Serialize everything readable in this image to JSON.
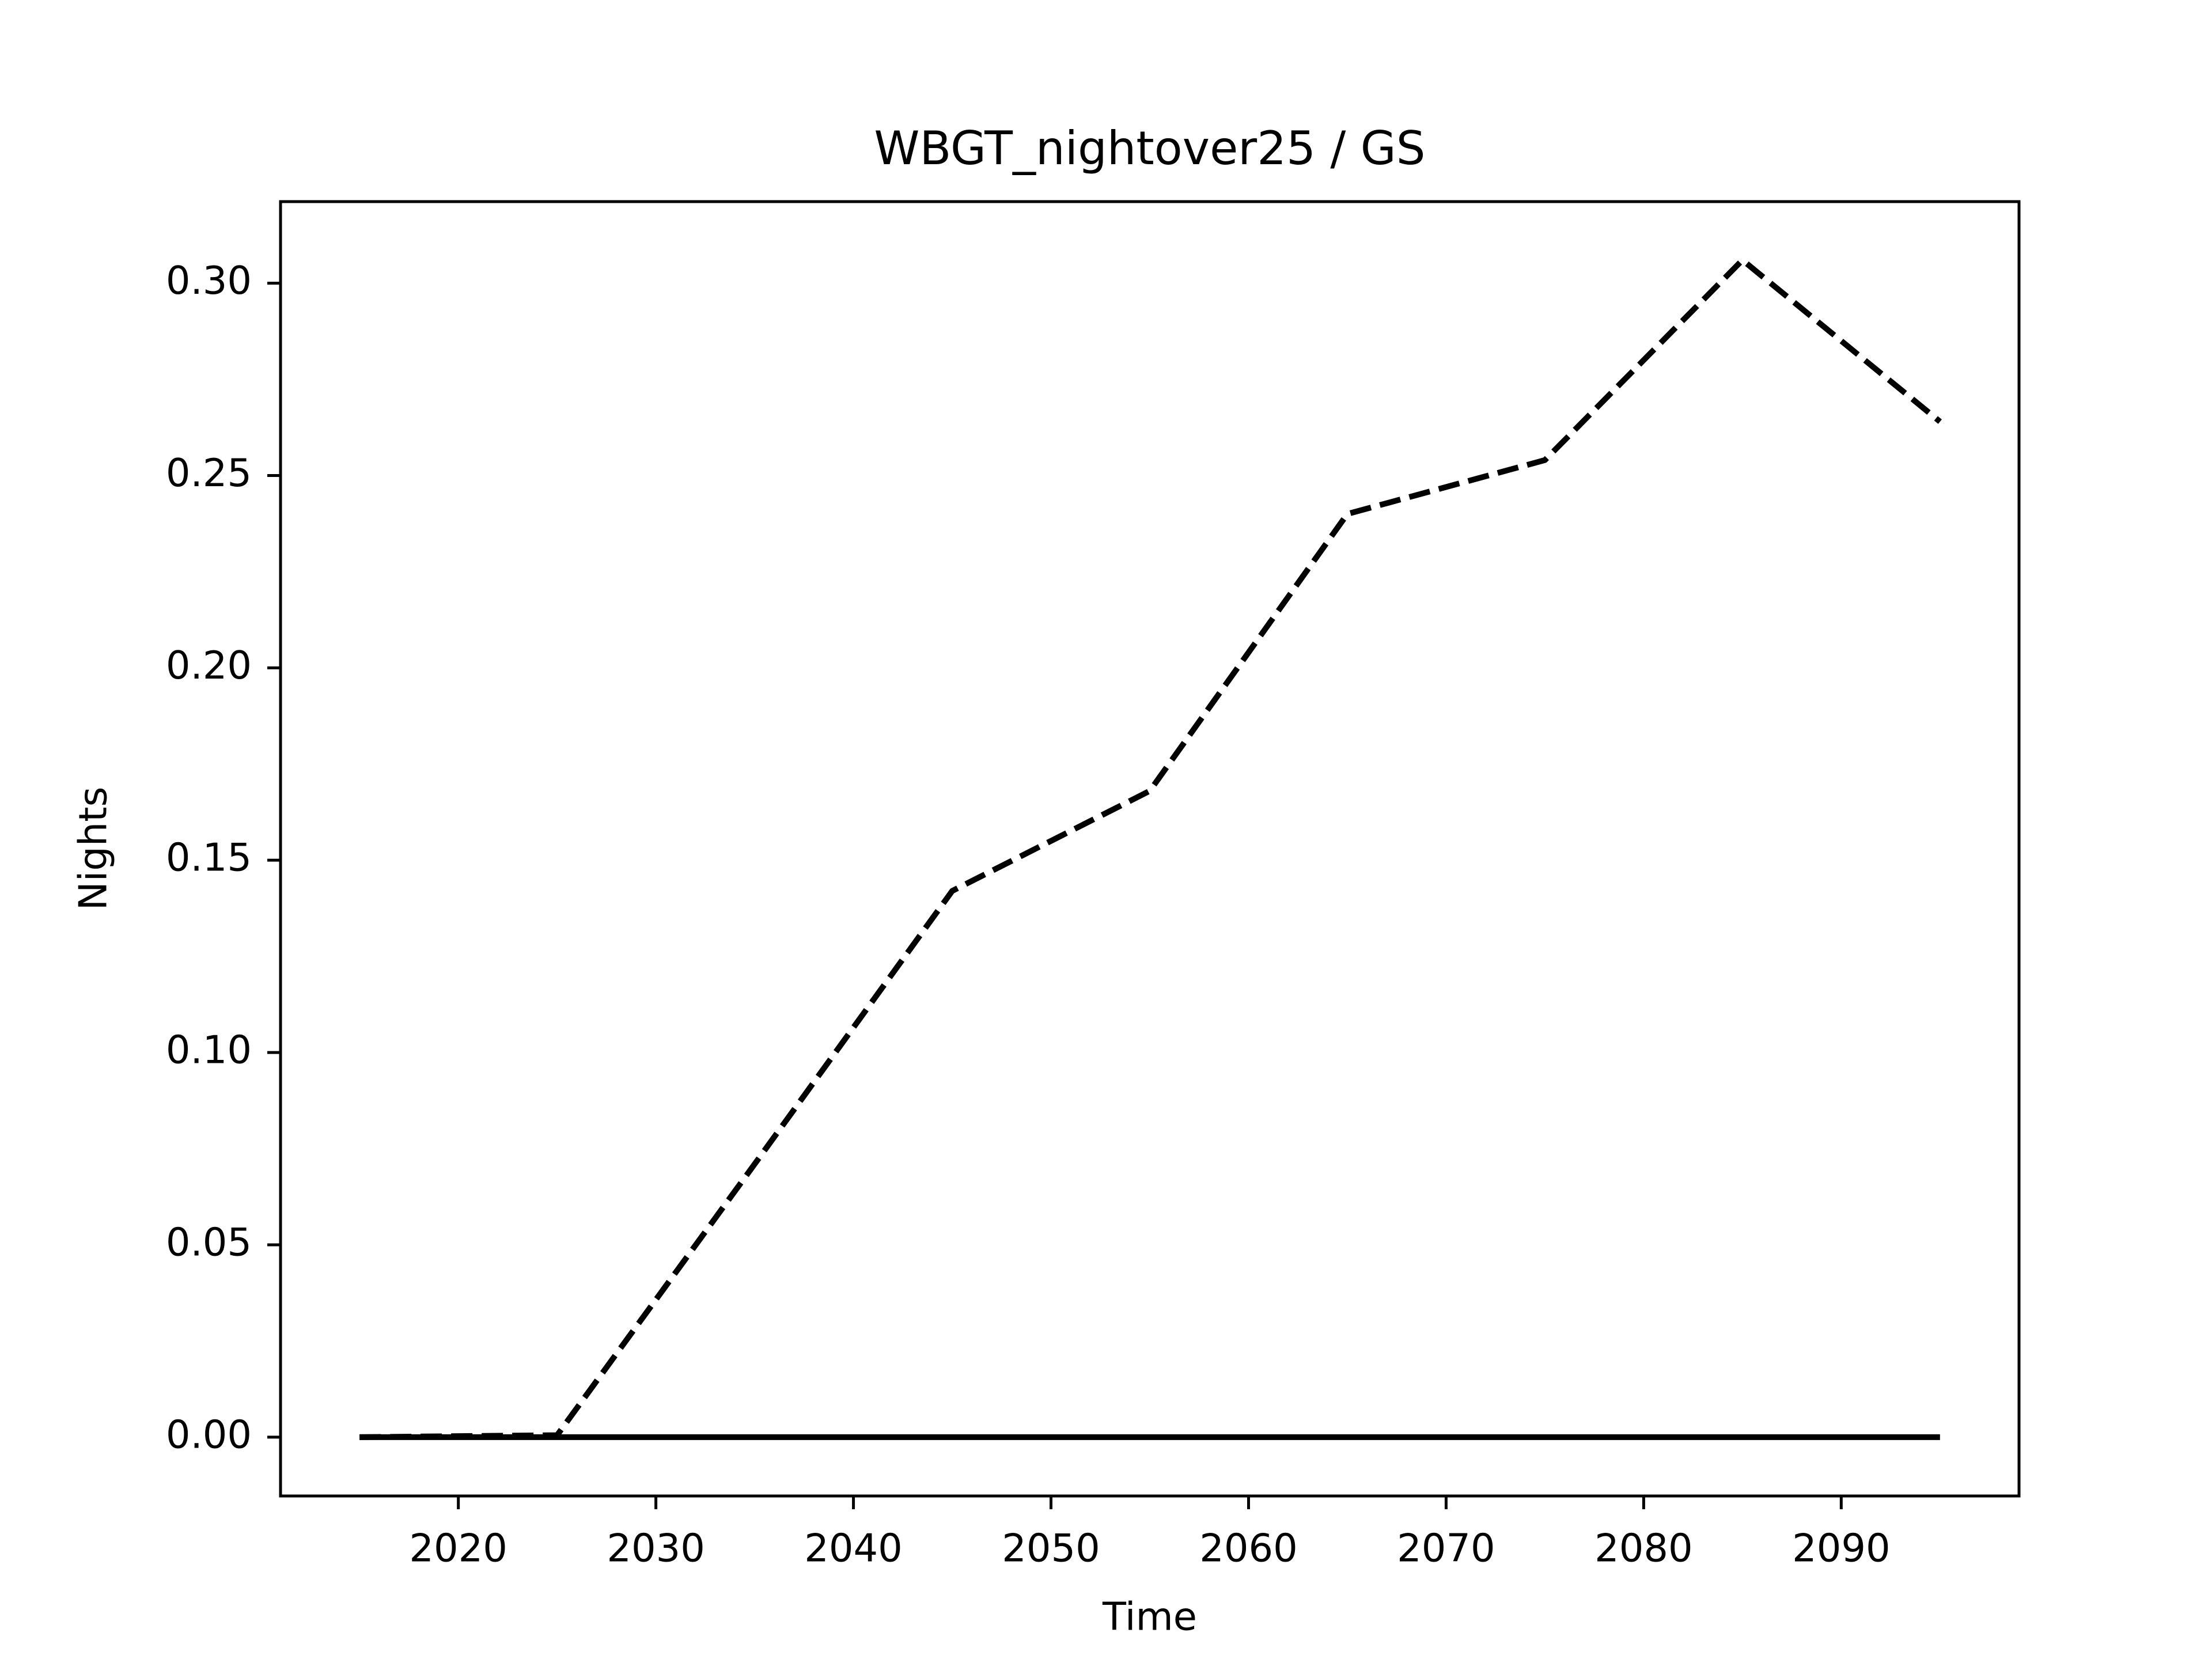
{
  "chart_data": {
    "type": "line",
    "title": "WBGT_nightover25 / GS",
    "x_label": "Time",
    "y_label": "Nights",
    "x": [
      2015,
      2025,
      2035,
      2045,
      2055,
      2065,
      2075,
      2085,
      2095
    ],
    "series": [
      {
        "color": "#000000",
        "linestyle": "dashed",
        "values": [
          0,
          0.0005,
          0.071,
          0.142,
          0.168,
          0.24,
          0.254,
          0.306,
          0.264
        ]
      },
      {
        "color": "#000000",
        "linestyle": "solid",
        "values": [
          0,
          0,
          0,
          0,
          0,
          0,
          0,
          0,
          0
        ]
      }
    ],
    "xlim": [
      2011,
      2099
    ],
    "ylim": [
      -0.0153,
      0.3212
    ],
    "xticks": [
      2020,
      2030,
      2040,
      2050,
      2060,
      2070,
      2080,
      2090
    ],
    "yticks": [
      {
        "value": 0,
        "label": "0.00"
      },
      {
        "value": 0.05,
        "label": "0.05"
      },
      {
        "value": 0.1,
        "label": "0.10"
      },
      {
        "value": 0.15,
        "label": "0.15"
      },
      {
        "value": 0.2,
        "label": "0.20"
      },
      {
        "value": 0.25,
        "label": "0.25"
      },
      {
        "value": 0.3,
        "label": "0.30"
      }
    ],
    "grid": false
  }
}
